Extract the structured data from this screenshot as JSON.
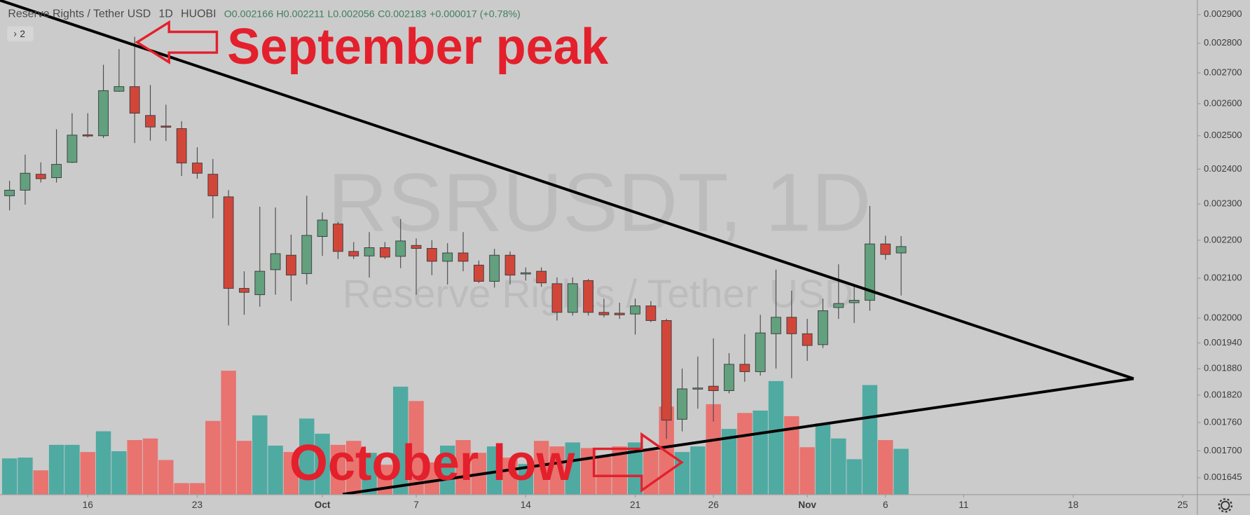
{
  "header": {
    "symbol": "Reserve Rights / Tether USD",
    "interval": "1D",
    "exchange": "HUOBI",
    "ohlc": [
      "O0.002166",
      "H0.002211",
      "L0.002056",
      "C0.002183"
    ],
    "change": "+0.000017 (+0.78%)",
    "indicators": "2"
  },
  "watermark": {
    "ticker": "RSRUSDT, 1D",
    "name": "Reserve Rights / Tether USD"
  },
  "chart_data": {
    "type": "candlestick",
    "annotations": [
      "September peak",
      "October low"
    ],
    "open": [
      0.002323,
      0.002339,
      0.002385,
      0.002375,
      0.00242,
      0.002503,
      0.0025,
      0.00264,
      0.002655,
      0.002563,
      0.00253,
      0.002522,
      0.002418,
      0.002385,
      0.00232,
      0.002074,
      0.002058,
      0.002122,
      0.00216,
      0.002112,
      0.00221,
      0.002244,
      0.00217,
      0.002158,
      0.00218,
      0.002157,
      0.002186,
      0.002178,
      0.002144,
      0.002166,
      0.002134,
      0.002092,
      0.00216,
      0.002112,
      0.002118,
      0.002086,
      0.002014,
      0.002094,
      0.002014,
      0.002012,
      0.00201,
      0.00203,
      0.001994,
      0.001767,
      0.001834,
      0.00184,
      0.00183,
      0.00189,
      0.001873,
      0.001962,
      0.002002,
      0.001962,
      0.001936,
      0.002026,
      0.002038,
      0.002044,
      0.00219,
      0.002166
    ],
    "high": [
      0.002366,
      0.002443,
      0.00242,
      0.00252,
      0.00257,
      0.00257,
      0.002727,
      0.00278,
      0.002822,
      0.00266,
      0.002597,
      0.002545,
      0.002465,
      0.00243,
      0.002339,
      0.002118,
      0.002292,
      0.00229,
      0.002215,
      0.002323,
      0.002276,
      0.00225,
      0.002195,
      0.002222,
      0.002195,
      0.002258,
      0.002205,
      0.0022,
      0.002192,
      0.002222,
      0.002146,
      0.002177,
      0.00217,
      0.002128,
      0.002128,
      0.002102,
      0.002102,
      0.002098,
      0.002048,
      0.002038,
      0.002048,
      0.002042,
      0.001998,
      0.00188,
      0.001908,
      0.001951,
      0.001916,
      0.001961,
      0.002008,
      0.002122,
      0.002068,
      0.001998,
      0.002048,
      0.002136,
      0.00208,
      0.002294,
      0.002212,
      0.002211
    ],
    "low": [
      0.002282,
      0.002298,
      0.002361,
      0.002361,
      0.002418,
      0.002495,
      0.002493,
      0.002638,
      0.002478,
      0.002485,
      0.002484,
      0.00238,
      0.002372,
      0.00226,
      0.001982,
      0.002008,
      0.002028,
      0.002058,
      0.002042,
      0.002084,
      0.002158,
      0.00215,
      0.00215,
      0.002102,
      0.00215,
      0.002126,
      0.002058,
      0.002108,
      0.002084,
      0.002118,
      0.002088,
      0.002076,
      0.002084,
      0.002094,
      0.002078,
      0.001994,
      0.002006,
      0.002006,
      0.002002,
      0.001998,
      0.00196,
      0.00199,
      0.001725,
      0.001741,
      0.00179,
      0.001762,
      0.001824,
      0.00185,
      0.001864,
      0.00188,
      0.001858,
      0.001898,
      0.001928,
      0.001998,
      0.001988,
      0.002018,
      0.002148,
      0.002056
    ],
    "close": [
      0.002339,
      0.002388,
      0.002372,
      0.002414,
      0.002502,
      0.0025,
      0.002642,
      0.002655,
      0.00257,
      0.002527,
      0.002527,
      0.002418,
      0.002388,
      0.002323,
      0.002074,
      0.002064,
      0.002118,
      0.002164,
      0.002108,
      0.002213,
      0.002255,
      0.00217,
      0.002158,
      0.00218,
      0.002155,
      0.002198,
      0.002178,
      0.002144,
      0.002166,
      0.002144,
      0.002092,
      0.00216,
      0.002108,
      0.002114,
      0.002088,
      0.002014,
      0.002086,
      0.002014,
      0.002008,
      0.002008,
      0.00203,
      0.001994,
      0.001765,
      0.001834,
      0.001836,
      0.00183,
      0.00189,
      0.001873,
      0.001964,
      0.002002,
      0.001962,
      0.001934,
      0.002018,
      0.002036,
      0.002044,
      0.00219,
      0.002162,
      0.002183
    ],
    "volume": [
      45,
      46,
      30,
      62,
      62,
      53,
      79,
      54,
      68,
      70,
      43,
      14,
      14,
      92,
      155,
      67,
      99,
      61,
      53,
      95,
      76,
      62,
      67,
      52,
      37,
      135,
      117,
      40,
      61,
      68,
      52,
      60,
      46,
      38,
      67,
      60,
      65,
      58,
      47,
      60,
      65,
      55,
      110,
      53,
      60,
      113,
      82,
      102,
      105,
      142,
      98,
      59,
      89,
      70,
      44,
      137,
      68,
      57
    ],
    "up_color": "#62a07e",
    "down_color": "#d2463a",
    "volume_up_color": "#4faaa2",
    "volume_down_color": "#e9736f",
    "log_scale": true,
    "grid": false,
    "ylim": [
      0.001612,
      0.002952
    ],
    "yticks": [
      {
        "value": 0.0029,
        "label": "0.002900"
      },
      {
        "value": 0.0028,
        "label": "0.002800"
      },
      {
        "value": 0.0027,
        "label": "0.002700"
      },
      {
        "value": 0.0026,
        "label": "0.002600"
      },
      {
        "value": 0.0025,
        "label": "0.002500"
      },
      {
        "value": 0.0024,
        "label": "0.002400"
      },
      {
        "value": 0.0023,
        "label": "0.002300"
      },
      {
        "value": 0.0022,
        "label": "0.002200"
      },
      {
        "value": 0.0021,
        "label": "0.002100"
      },
      {
        "value": 0.002,
        "label": "0.002000"
      },
      {
        "value": 0.00194,
        "label": "0.001940"
      },
      {
        "value": 0.00188,
        "label": "0.001880"
      },
      {
        "value": 0.00182,
        "label": "0.001820"
      },
      {
        "value": 0.00176,
        "label": "0.001760"
      },
      {
        "value": 0.0017,
        "label": "0.001700"
      },
      {
        "value": 0.001645,
        "label": "0.001645"
      }
    ],
    "xlim": [
      -0.61,
      75.94
    ],
    "xticks": [
      {
        "value": 5,
        "label": "16"
      },
      {
        "value": 12,
        "label": "23"
      },
      {
        "value": 20,
        "label": "Oct"
      },
      {
        "value": 26,
        "label": "7"
      },
      {
        "value": 33,
        "label": "14"
      },
      {
        "value": 40,
        "label": "21"
      },
      {
        "value": 45,
        "label": "26"
      },
      {
        "value": 51,
        "label": "Nov"
      },
      {
        "value": 56,
        "label": "6"
      },
      {
        "value": 61,
        "label": "11"
      },
      {
        "value": 68,
        "label": "18"
      },
      {
        "value": 75,
        "label": "25"
      }
    ]
  }
}
